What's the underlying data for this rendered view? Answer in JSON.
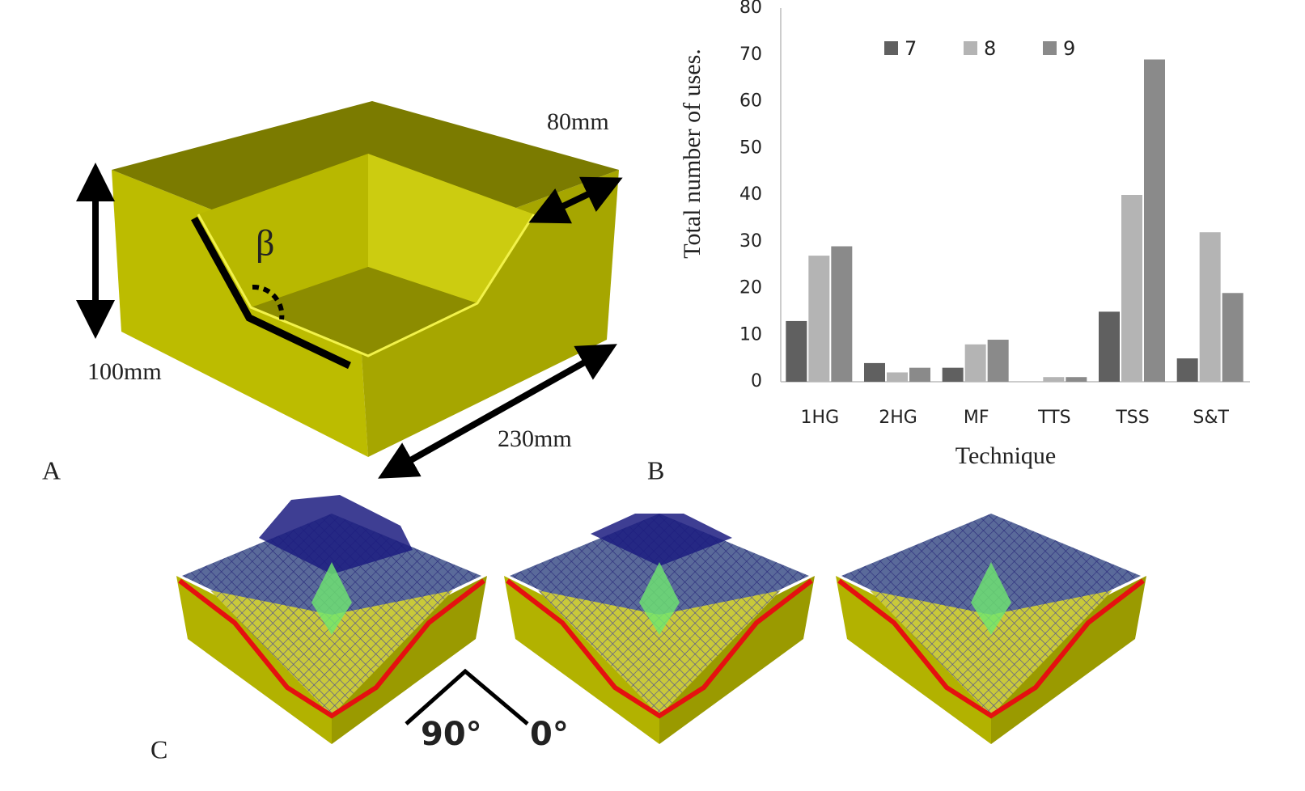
{
  "panels": {
    "a": {
      "label": "A",
      "dimensions": [
        "80mm",
        "100mm",
        "230mm"
      ],
      "angle": "β"
    },
    "b": {
      "label": "B"
    },
    "c": {
      "label": "C",
      "angles": [
        "90°",
        "0°"
      ]
    }
  },
  "chart_data": {
    "type": "bar",
    "y_label": "Total number of uses.",
    "x_label": "Technique",
    "categories": [
      "1HG",
      "2HG",
      "MF",
      "TTS",
      "TSS",
      "S&T"
    ],
    "series": [
      {
        "name": "7",
        "color": "#606060",
        "values": [
          13,
          4,
          3,
          0,
          15,
          5
        ]
      },
      {
        "name": "8",
        "color": "#b4b4b4",
        "values": [
          27,
          2,
          8,
          1,
          40,
          32
        ]
      },
      {
        "name": "9",
        "color": "#8a8a8a",
        "values": [
          29,
          3,
          9,
          1,
          69,
          19
        ]
      }
    ],
    "ylim": [
      0,
      80
    ],
    "yticks": [
      0,
      10,
      20,
      30,
      40,
      50,
      60,
      70,
      80
    ],
    "legend": "top",
    "grid": false
  }
}
